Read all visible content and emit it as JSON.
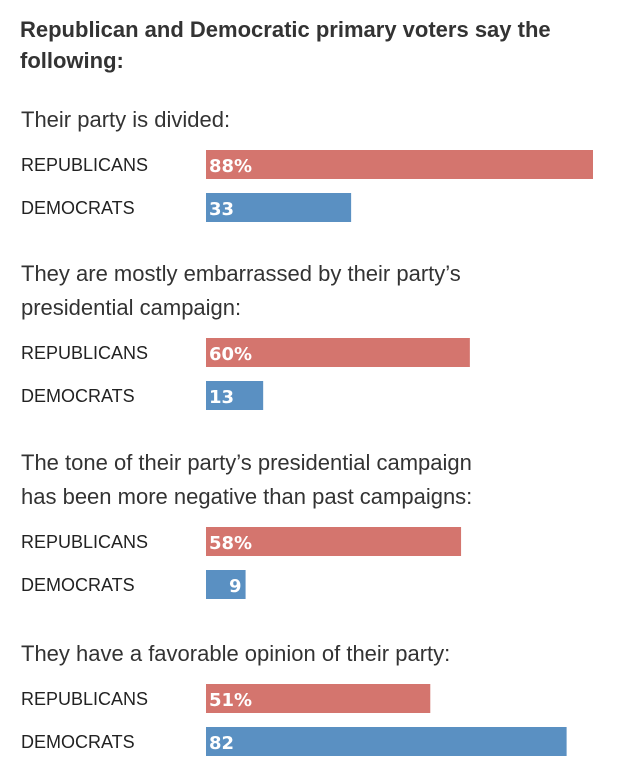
{
  "chart_data": {
    "type": "bar",
    "title": "Republican and Democratic primary voters say the following:",
    "xlim": [
      0,
      100
    ],
    "series_names": [
      "REPUBLICANS",
      "DEMOCRATS"
    ],
    "colors": {
      "REPUBLICANS": "#d4756e",
      "DEMOCRATS": "#5a90c2"
    },
    "groups": [
      {
        "question_lines": [
          "Their party is divided:"
        ],
        "bars": [
          {
            "party": "REPUBLICANS",
            "value": 88,
            "label": "88%"
          },
          {
            "party": "DEMOCRATS",
            "value": 33,
            "label": "33"
          }
        ]
      },
      {
        "question_lines": [
          "They are mostly embarrassed by their party’s",
          "presidential campaign:"
        ],
        "bars": [
          {
            "party": "REPUBLICANS",
            "value": 60,
            "label": "60%"
          },
          {
            "party": "DEMOCRATS",
            "value": 13,
            "label": "13"
          }
        ]
      },
      {
        "question_lines": [
          "The tone of their party’s presidential campaign",
          "has been more negative than past campaigns:"
        ],
        "bars": [
          {
            "party": "REPUBLICANS",
            "value": 58,
            "label": "58%"
          },
          {
            "party": "DEMOCRATS",
            "value": 9,
            "label": "9"
          }
        ]
      },
      {
        "question_lines": [
          "They have a favorable opinion of their party:"
        ],
        "bars": [
          {
            "party": "REPUBLICANS",
            "value": 51,
            "label": "51%"
          },
          {
            "party": "DEMOCRATS",
            "value": 82,
            "label": "82"
          }
        ]
      }
    ]
  }
}
